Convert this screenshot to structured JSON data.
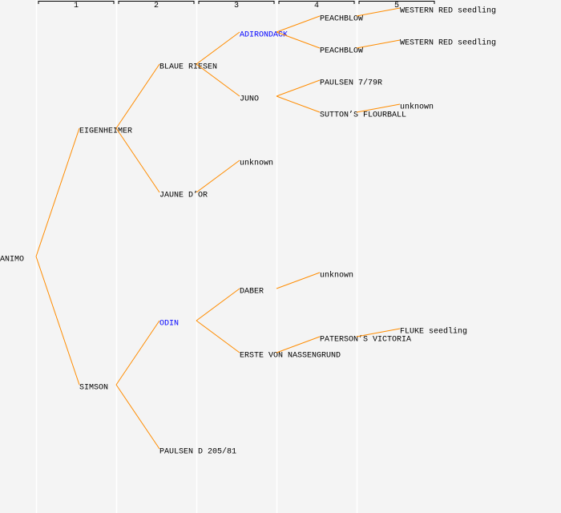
{
  "colors": {
    "background": "#f4f4f4",
    "line": "#ff8c00",
    "text": "#000000",
    "highlight": "#0000ff",
    "column_divider": "#ffffff"
  },
  "generation_headers": [
    "1",
    "2",
    "3",
    "4",
    "5"
  ],
  "pedigree": {
    "name": "ANIMO",
    "parents": [
      {
        "name": "EIGENHEIMER",
        "parents": [
          {
            "name": "BLAUE RIESEN",
            "parents": [
              {
                "name": "ADIRONDACK",
                "highlight": true,
                "parents": [
                  {
                    "name": "PEACHBLOW",
                    "parents": [
                      {
                        "name": "WESTERN RED seedling"
                      },
                      null
                    ]
                  },
                  {
                    "name": "PEACHBLOW",
                    "parents": [
                      {
                        "name": "WESTERN RED seedling"
                      },
                      null
                    ]
                  }
                ]
              },
              {
                "name": "JUNO",
                "parents": [
                  {
                    "name": "PAULSEN 7/79R"
                  },
                  {
                    "name": "SUTTON’S FLOURBALL",
                    "parents": [
                      {
                        "name": "unknown"
                      },
                      null
                    ]
                  }
                ]
              }
            ]
          },
          {
            "name": "JAUNE D’OR",
            "parents": [
              {
                "name": "unknown"
              },
              null
            ]
          }
        ]
      },
      {
        "name": "SIMSON",
        "parents": [
          {
            "name": "ODIN",
            "highlight": true,
            "parents": [
              {
                "name": "DABER",
                "parents": [
                  {
                    "name": "unknown"
                  },
                  null
                ]
              },
              {
                "name": "ERSTE VON NASSENGRUND",
                "parents": [
                  {
                    "name": "PATERSON’S VICTORIA",
                    "parents": [
                      {
                        "name": "FLUKE seedling"
                      },
                      null
                    ]
                  },
                  null
                ]
              }
            ]
          },
          {
            "name": "PAULSEN D 205/81"
          }
        ]
      }
    ]
  }
}
